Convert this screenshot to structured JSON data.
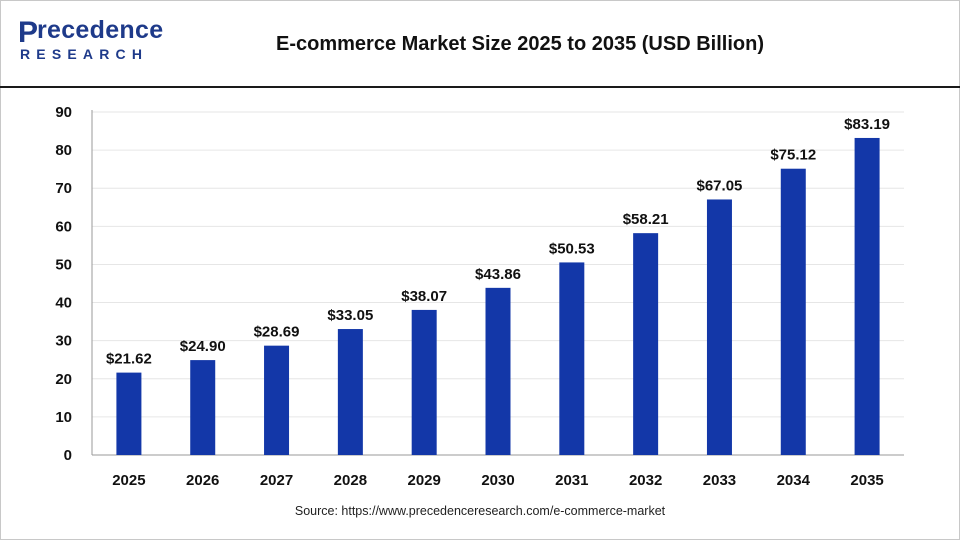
{
  "header": {
    "logo_main": "recedence",
    "logo_initial": "P",
    "logo_sub": "RESEARCH",
    "title": "E-commerce Market Size 2025 to 2035 (USD Billion)"
  },
  "source": "Source: https://www.precedenceresearch.com/e-commerce-market",
  "colors": {
    "bar": "#1337a8",
    "brand": "#1e3a8a",
    "grid": "#e6e6e6"
  },
  "chart_data": {
    "type": "bar",
    "title": "E-commerce Market Size 2025 to 2035 (USD Billion)",
    "categories": [
      "2025",
      "2026",
      "2027",
      "2028",
      "2029",
      "2030",
      "2031",
      "2032",
      "2033",
      "2034",
      "2035"
    ],
    "values": [
      21.62,
      24.9,
      28.69,
      33.05,
      38.07,
      43.86,
      50.53,
      58.21,
      67.05,
      75.12,
      83.19
    ],
    "data_labels": [
      "$21.62",
      "$24.90",
      "$28.69",
      "$33.05",
      "$38.07",
      "$43.86",
      "$50.53",
      "$58.21",
      "$67.05",
      "$75.12",
      "$83.19"
    ],
    "y_ticks": [
      0,
      10,
      20,
      30,
      40,
      50,
      60,
      70,
      80,
      90
    ],
    "ylim": [
      0,
      90
    ],
    "xlabel": "",
    "ylabel": "",
    "grid": true,
    "legend": "none"
  }
}
